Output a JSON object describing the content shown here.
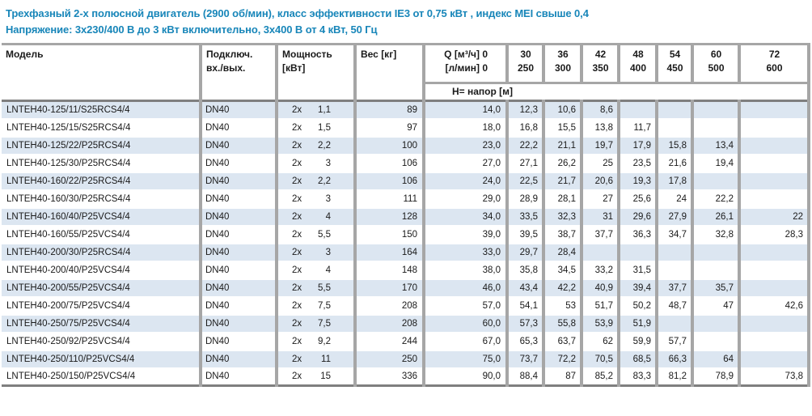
{
  "page_title": {
    "line1": "Трехфазный 2-х полюсной двигатель (2900 об/мин), класс эффективности IE3 от 0,75 кВт ,  индекс MEI свыше 0,4",
    "line2": "Напряжение: 3х230/400 В до 3 кВт включительно, 3х400 В от 4 кВт, 50 Гц"
  },
  "colors": {
    "accent_blue": "#1886b9",
    "row_stripe": "#dce6f1",
    "grid_gray": "#a6a6a6",
    "heavy_border": "#7f7f7f"
  },
  "table": {
    "headers": {
      "model": "Модель",
      "connection_line1": "Подключ.",
      "connection_line2": "вх./вых.",
      "power_line1": "Мощность",
      "power_line2": "[кВт]",
      "weight": "Вес [кг]",
      "flow_line1": "Q [м³/ч] 0",
      "flow_line2": "[л/мин] 0",
      "head_row_label": "Н= напор [м]"
    },
    "flow_columns": [
      {
        "m3h": "30",
        "lmin": "250"
      },
      {
        "m3h": "36",
        "lmin": "300"
      },
      {
        "m3h": "42",
        "lmin": "350"
      },
      {
        "m3h": "48",
        "lmin": "400"
      },
      {
        "m3h": "54",
        "lmin": "450"
      },
      {
        "m3h": "60",
        "lmin": "500"
      },
      {
        "m3h": "72",
        "lmin": "600"
      }
    ],
    "power_prefix": "2x",
    "rows": [
      {
        "model": "LNTEH40-125/11/S25RCS4/4",
        "connection": "DN40",
        "power": "1,1",
        "weight": "89",
        "heads": [
          "14,0",
          "12,3",
          "10,6",
          "8,6",
          "",
          "",
          "",
          ""
        ]
      },
      {
        "model": "LNTEH40-125/15/S25RCS4/4",
        "connection": "DN40",
        "power": "1,5",
        "weight": "97",
        "heads": [
          "18,0",
          "16,8",
          "15,5",
          "13,8",
          "11,7",
          "",
          "",
          ""
        ]
      },
      {
        "model": "LNTEH40-125/22/P25RCS4/4",
        "connection": "DN40",
        "power": "2,2",
        "weight": "100",
        "heads": [
          "23,0",
          "22,2",
          "21,1",
          "19,7",
          "17,9",
          "15,8",
          "13,4",
          ""
        ]
      },
      {
        "model": "LNTEH40-125/30/P25RCS4/4",
        "connection": "DN40",
        "power": "3",
        "weight": "106",
        "heads": [
          "27,0",
          "27,1",
          "26,2",
          "25",
          "23,5",
          "21,6",
          "19,4",
          ""
        ]
      },
      {
        "model": "LNTEH40-160/22/P25RCS4/4",
        "connection": "DN40",
        "power": "2,2",
        "weight": "106",
        "heads": [
          "24,0",
          "22,5",
          "21,7",
          "20,6",
          "19,3",
          "17,8",
          "",
          ""
        ]
      },
      {
        "model": "LNTEH40-160/30/P25RCS4/4",
        "connection": "DN40",
        "power": "3",
        "weight": "111",
        "heads": [
          "29,0",
          "28,9",
          "28,1",
          "27",
          "25,6",
          "24",
          "22,2",
          ""
        ]
      },
      {
        "model": "LNTEH40-160/40/P25VCS4/4",
        "connection": "DN40",
        "power": "4",
        "weight": "128",
        "heads": [
          "34,0",
          "33,5",
          "32,3",
          "31",
          "29,6",
          "27,9",
          "26,1",
          "22"
        ]
      },
      {
        "model": "LNTEH40-160/55/P25VCS4/4",
        "connection": "DN40",
        "power": "5,5",
        "weight": "150",
        "heads": [
          "39,0",
          "39,5",
          "38,7",
          "37,7",
          "36,3",
          "34,7",
          "32,8",
          "28,3"
        ]
      },
      {
        "model": "LNTEH40-200/30/P25RCS4/4",
        "connection": "DN40",
        "power": "3",
        "weight": "164",
        "heads": [
          "33,0",
          "29,7",
          "28,4",
          "",
          "",
          "",
          "",
          ""
        ]
      },
      {
        "model": "LNTEH40-200/40/P25VCS4/4",
        "connection": "DN40",
        "power": "4",
        "weight": "148",
        "heads": [
          "38,0",
          "35,8",
          "34,5",
          "33,2",
          "31,5",
          "",
          "",
          ""
        ]
      },
      {
        "model": "LNTEH40-200/55/P25VCS4/4",
        "connection": "DN40",
        "power": "5,5",
        "weight": "170",
        "heads": [
          "46,0",
          "43,4",
          "42,2",
          "40,9",
          "39,4",
          "37,7",
          "35,7",
          ""
        ]
      },
      {
        "model": "LNTEH40-200/75/P25VCS4/4",
        "connection": "DN40",
        "power": "7,5",
        "weight": "208",
        "heads": [
          "57,0",
          "54,1",
          "53",
          "51,7",
          "50,2",
          "48,7",
          "47",
          "42,6"
        ]
      },
      {
        "model": "LNTEH40-250/75/P25VCS4/4",
        "connection": "DN40",
        "power": "7,5",
        "weight": "208",
        "heads": [
          "60,0",
          "57,3",
          "55,8",
          "53,9",
          "51,9",
          "",
          "",
          ""
        ]
      },
      {
        "model": "LNTEH40-250/92/P25VCS4/4",
        "connection": "DN40",
        "power": "9,2",
        "weight": "244",
        "heads": [
          "67,0",
          "65,3",
          "63,7",
          "62",
          "59,9",
          "57,7",
          "",
          ""
        ]
      },
      {
        "model": "LNTEH40-250/110/P25VCS4/4",
        "connection": "DN40",
        "power": "11",
        "weight": "250",
        "heads": [
          "75,0",
          "73,7",
          "72,2",
          "70,5",
          "68,5",
          "66,3",
          "64",
          ""
        ]
      },
      {
        "model": "LNTEH40-250/150/P25VCS4/4",
        "connection": "DN40",
        "power": "15",
        "weight": "336",
        "heads": [
          "90,0",
          "88,4",
          "87",
          "85,2",
          "83,3",
          "81,2",
          "78,9",
          "73,8"
        ]
      }
    ]
  }
}
